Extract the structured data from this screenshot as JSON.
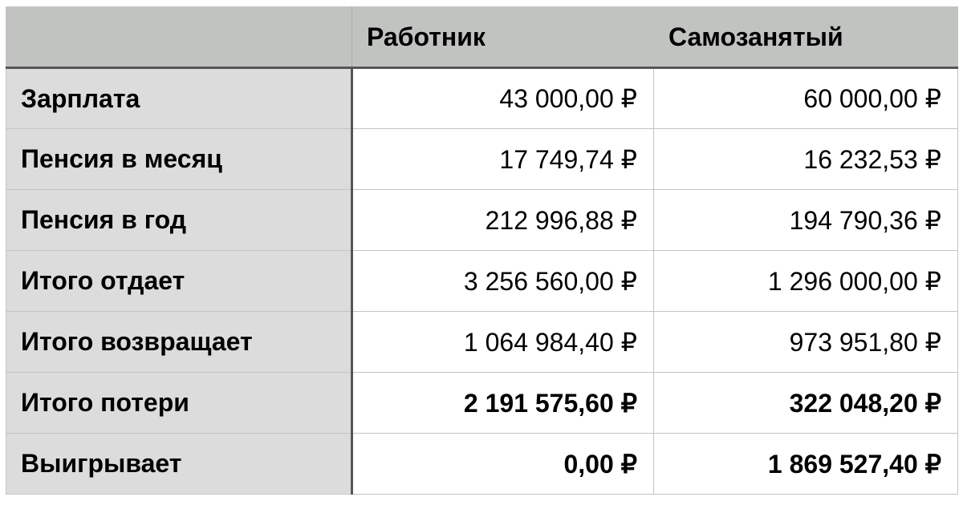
{
  "header": {
    "corner": "",
    "columns": [
      "Работник",
      "Самозанятый"
    ]
  },
  "rows": [
    {
      "label": "Зарплата",
      "values": [
        "43 000,00 ₽",
        "60 000,00 ₽"
      ],
      "bold": false
    },
    {
      "label": "Пенсия в месяц",
      "values": [
        "17 749,74 ₽",
        "16 232,53 ₽"
      ],
      "bold": false
    },
    {
      "label": "Пенсия в год",
      "values": [
        "212 996,88 ₽",
        "194 790,36 ₽"
      ],
      "bold": false
    },
    {
      "label": "Итого отдает",
      "values": [
        "3 256 560,00 ₽",
        "1 296 000,00 ₽"
      ],
      "bold": false
    },
    {
      "label": "Итого возвращает",
      "values": [
        "1 064 984,40 ₽",
        "973 951,80 ₽"
      ],
      "bold": false
    },
    {
      "label": "Итого потери",
      "values": [
        "2 191 575,60 ₽",
        "322 048,20 ₽"
      ],
      "bold": true
    },
    {
      "label": "Выигрывает",
      "values": [
        "0,00 ₽",
        "1 869 527,40 ₽"
      ],
      "bold": true
    }
  ],
  "colors": {
    "header_bg": "#c1c3c1",
    "row_header_bg": "#dcdcdc",
    "divider": "#555555"
  }
}
